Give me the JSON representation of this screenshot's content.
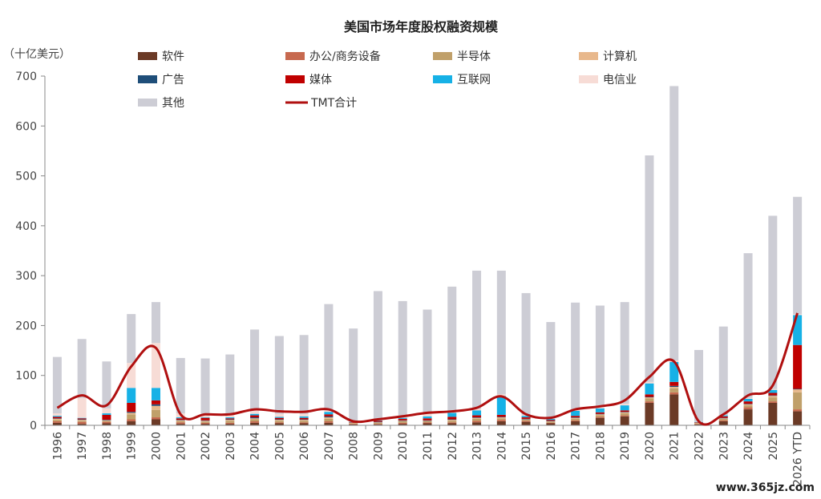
{
  "chart_data": {
    "type": "bar",
    "title": "美国市场年度股权融资规模",
    "unit_label": "（十亿美元）",
    "ylim": [
      0,
      700
    ],
    "yticks": [
      0,
      100,
      200,
      300,
      400,
      500,
      600,
      700
    ],
    "categories": [
      "1996",
      "1997",
      "1998",
      "1999",
      "2000",
      "2001",
      "2002",
      "2003",
      "2004",
      "2005",
      "2006",
      "2007",
      "2008",
      "2009",
      "2010",
      "2011",
      "2012",
      "2013",
      "2014",
      "2015",
      "2016",
      "2017",
      "2018",
      "2019",
      "2020",
      "2021",
      "2022",
      "2023",
      "2024",
      "2025",
      "2026 YTD"
    ],
    "series": [
      {
        "name": "软件",
        "color": "#6b3a26",
        "values": [
          5,
          3,
          4,
          8,
          12,
          3,
          3,
          3,
          5,
          4,
          4,
          5,
          2,
          2,
          3,
          4,
          4,
          6,
          8,
          7,
          4,
          8,
          15,
          18,
          45,
          62,
          2,
          8,
          32,
          45,
          28
        ]
      },
      {
        "name": "办公/商务设备",
        "color": "#c7694f",
        "values": [
          3,
          4,
          3,
          4,
          4,
          3,
          2,
          2,
          3,
          2,
          2,
          3,
          1,
          1,
          2,
          2,
          2,
          3,
          3,
          2,
          1,
          2,
          2,
          2,
          3,
          4,
          1,
          2,
          4,
          3,
          4
        ]
      },
      {
        "name": "半导体",
        "color": "#c0a06a",
        "values": [
          3,
          2,
          2,
          10,
          15,
          2,
          2,
          4,
          4,
          3,
          3,
          5,
          1,
          2,
          3,
          2,
          3,
          4,
          3,
          2,
          2,
          3,
          3,
          4,
          6,
          8,
          1,
          3,
          4,
          8,
          34
        ]
      },
      {
        "name": "计算机",
        "color": "#e8b88c",
        "values": [
          2,
          2,
          1,
          3,
          8,
          2,
          2,
          2,
          2,
          2,
          2,
          3,
          1,
          1,
          1,
          1,
          2,
          2,
          2,
          1,
          1,
          2,
          2,
          2,
          2,
          3,
          1,
          1,
          2,
          3,
          6
        ]
      },
      {
        "name": "广告",
        "color": "#1f4e79",
        "values": [
          1,
          1,
          1,
          2,
          3,
          1,
          1,
          1,
          2,
          1,
          1,
          2,
          0,
          1,
          1,
          1,
          1,
          1,
          1,
          1,
          1,
          1,
          1,
          1,
          1,
          2,
          0,
          1,
          1,
          1,
          1
        ]
      },
      {
        "name": "媒体",
        "color": "#c00000",
        "values": [
          3,
          2,
          10,
          18,
          8,
          3,
          5,
          2,
          4,
          3,
          3,
          4,
          1,
          2,
          3,
          4,
          5,
          4,
          4,
          3,
          2,
          3,
          3,
          3,
          5,
          8,
          1,
          3,
          5,
          5,
          88
        ]
      },
      {
        "name": "互联网",
        "color": "#16b1e6",
        "values": [
          2,
          1,
          3,
          30,
          25,
          2,
          1,
          2,
          3,
          2,
          3,
          5,
          1,
          1,
          2,
          4,
          8,
          10,
          38,
          3,
          2,
          10,
          8,
          10,
          22,
          40,
          1,
          2,
          5,
          6,
          60
        ]
      },
      {
        "name": "电信业",
        "color": "#f7dcd6",
        "values": [
          5,
          40,
          10,
          50,
          90,
          8,
          5,
          6,
          8,
          6,
          5,
          5,
          1,
          2,
          3,
          5,
          3,
          3,
          3,
          2,
          2,
          3,
          3,
          3,
          3,
          3,
          1,
          1,
          2,
          2,
          2
        ]
      },
      {
        "name": "其他",
        "color": "#cdcdd5",
        "values": [
          113,
          118,
          94,
          98,
          82,
          111,
          113,
          120,
          161,
          156,
          158,
          211,
          186,
          257,
          231,
          209,
          250,
          277,
          248,
          244,
          192,
          214,
          203,
          204,
          454,
          550,
          143,
          177,
          290,
          347,
          235
        ]
      }
    ],
    "line": {
      "name": "TMT合计",
      "color": "#b01010",
      "values": [
        35,
        60,
        40,
        118,
        155,
        22,
        22,
        22,
        32,
        28,
        27,
        32,
        8,
        12,
        18,
        25,
        28,
        35,
        58,
        22,
        15,
        32,
        38,
        50,
        97,
        128,
        8,
        22,
        60,
        80,
        225
      ]
    },
    "legend_position": "top",
    "grid": false
  },
  "watermark": "www.365jz.com"
}
